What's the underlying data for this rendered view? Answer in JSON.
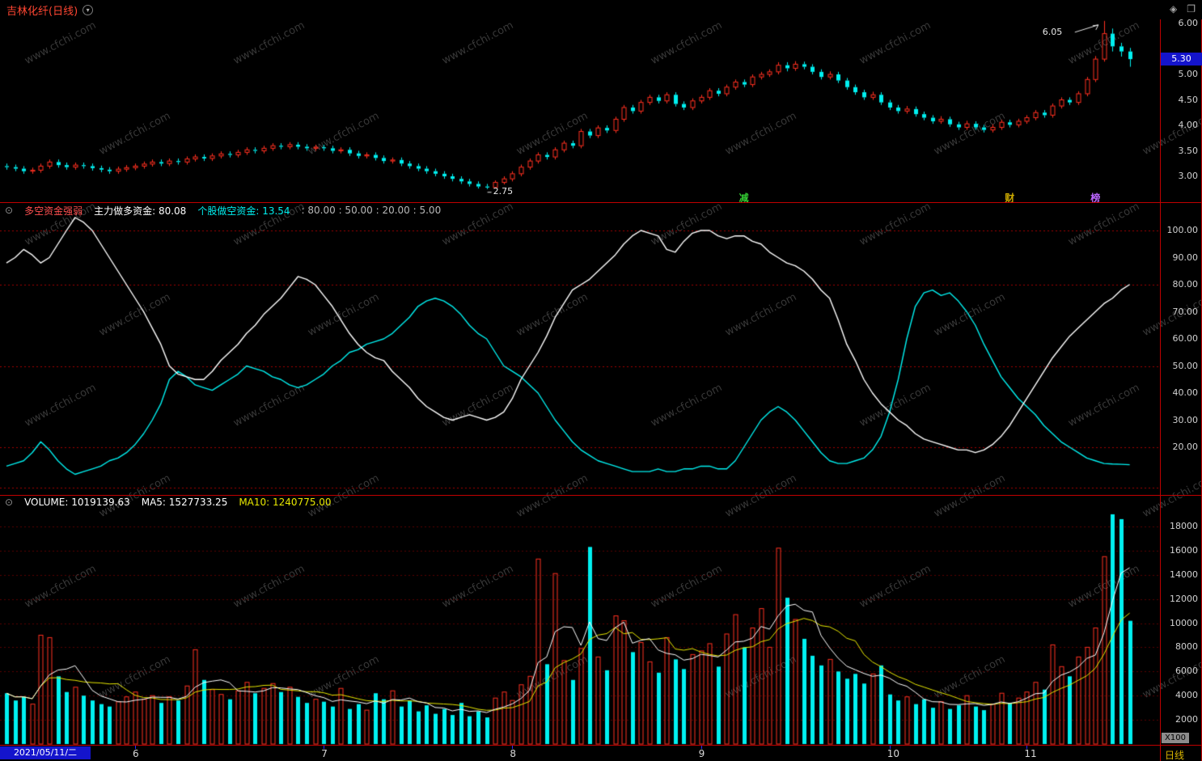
{
  "watermark": {
    "text": "www.cfchi.com"
  },
  "icons": {
    "collapse": "⊙",
    "caret": "▾",
    "diamond": "◈",
    "window": "❐"
  },
  "title_bar": {
    "title": "吉林化纤(日线)"
  },
  "main_panel": {
    "axis_labels": [
      "6.00",
      "5.00",
      "4.50",
      "4.00",
      "3.50",
      "3.00"
    ],
    "current_price": "5.30",
    "high_annotation": "6.05",
    "low_annotation": "2.75",
    "event_markers": [
      {
        "label": "减",
        "index": 86,
        "color": "#33cc33"
      },
      {
        "label": "财",
        "index": 117,
        "color": "#ccaa00"
      },
      {
        "label": "榜",
        "index": 127,
        "color": "#bb66ff"
      }
    ]
  },
  "indicator_panel": {
    "name": "多空资金强弱",
    "field1_label": "主力做多资金:",
    "field1_value": "80.08",
    "field2_label": "个股做空资金:",
    "field2_value": "13.54",
    "params": ": 80.00 : 50.00 : 20.00 : 5.00",
    "axis_labels": [
      "100.00",
      "90.00",
      "80.00",
      "70.00",
      "60.00",
      "50.00",
      "40.00",
      "30.00",
      "20.00"
    ]
  },
  "volume_panel": {
    "label": "VOLUME:",
    "value": "1019139.63",
    "ma5_label": "MA5:",
    "ma5_value": "1527733.25",
    "ma10_label": "MA10:",
    "ma10_value": "1240775.00",
    "axis_labels": [
      "18000",
      "16000",
      "14000",
      "12000",
      "10000",
      "8000",
      "6000",
      "4000",
      "2000"
    ],
    "unit_label": "X100"
  },
  "bottom_bar": {
    "date": "2021/05/11/二",
    "period": "日线"
  },
  "colors": {
    "up": "#ff3020",
    "down": "#00f0f0",
    "ma5": "#ffffff",
    "ma10": "#e8e800",
    "grid": "#a00000",
    "grid_soft": "#5a0000",
    "separator": "#c00000",
    "price_box_bg": "#1414cc",
    "watermark": "#aaaaaa",
    "title": "#ff4632"
  },
  "chart_data": {
    "type": "candlestick",
    "title": "吉林化纤 日线",
    "start_label": "2021/05/11",
    "price_range": [
      2.75,
      6.05
    ],
    "volume_range": [
      0,
      19000
    ],
    "candles": [
      [
        3.2,
        3.25,
        3.13,
        3.18
      ],
      [
        3.18,
        3.23,
        3.1,
        3.15
      ],
      [
        3.15,
        3.2,
        3.05,
        3.1
      ],
      [
        3.1,
        3.17,
        3.05,
        3.12
      ],
      [
        3.12,
        3.25,
        3.07,
        3.2
      ],
      [
        3.2,
        3.33,
        3.15,
        3.28
      ],
      [
        3.28,
        3.33,
        3.17,
        3.22
      ],
      [
        3.22,
        3.27,
        3.13,
        3.18
      ],
      [
        3.18,
        3.27,
        3.13,
        3.22
      ],
      [
        3.22,
        3.27,
        3.15,
        3.2
      ],
      [
        3.2,
        3.25,
        3.11,
        3.16
      ],
      [
        3.16,
        3.21,
        3.08,
        3.13
      ],
      [
        3.13,
        3.18,
        3.05,
        3.1
      ],
      [
        3.1,
        3.19,
        3.05,
        3.14
      ],
      [
        3.14,
        3.22,
        3.09,
        3.17
      ],
      [
        3.17,
        3.25,
        3.12,
        3.2
      ],
      [
        3.2,
        3.29,
        3.15,
        3.24
      ],
      [
        3.24,
        3.33,
        3.19,
        3.28
      ],
      [
        3.28,
        3.33,
        3.2,
        3.25
      ],
      [
        3.25,
        3.35,
        3.2,
        3.3
      ],
      [
        3.3,
        3.35,
        3.23,
        3.28
      ],
      [
        3.28,
        3.39,
        3.23,
        3.34
      ],
      [
        3.34,
        3.43,
        3.29,
        3.38
      ],
      [
        3.38,
        3.43,
        3.3,
        3.35
      ],
      [
        3.35,
        3.45,
        3.3,
        3.4
      ],
      [
        3.4,
        3.49,
        3.35,
        3.44
      ],
      [
        3.44,
        3.49,
        3.37,
        3.42
      ],
      [
        3.42,
        3.52,
        3.37,
        3.47
      ],
      [
        3.47,
        3.57,
        3.42,
        3.52
      ],
      [
        3.52,
        3.57,
        3.45,
        3.5
      ],
      [
        3.5,
        3.6,
        3.45,
        3.55
      ],
      [
        3.55,
        3.65,
        3.5,
        3.6
      ],
      [
        3.6,
        3.65,
        3.53,
        3.58
      ],
      [
        3.58,
        3.67,
        3.53,
        3.62
      ],
      [
        3.62,
        3.67,
        3.53,
        3.58
      ],
      [
        3.58,
        3.63,
        3.5,
        3.55
      ],
      [
        3.55,
        3.62,
        3.5,
        3.57
      ],
      [
        3.57,
        3.62,
        3.5,
        3.55
      ],
      [
        3.55,
        3.6,
        3.45,
        3.5
      ],
      [
        3.5,
        3.57,
        3.45,
        3.52
      ],
      [
        3.52,
        3.57,
        3.4,
        3.45
      ],
      [
        3.45,
        3.5,
        3.35,
        3.4
      ],
      [
        3.4,
        3.47,
        3.35,
        3.42
      ],
      [
        3.42,
        3.47,
        3.31,
        3.36
      ],
      [
        3.36,
        3.41,
        3.25,
        3.3
      ],
      [
        3.3,
        3.37,
        3.25,
        3.32
      ],
      [
        3.32,
        3.37,
        3.2,
        3.25
      ],
      [
        3.25,
        3.3,
        3.15,
        3.2
      ],
      [
        3.2,
        3.25,
        3.1,
        3.15
      ],
      [
        3.15,
        3.2,
        3.05,
        3.1
      ],
      [
        3.1,
        3.15,
        3.0,
        3.05
      ],
      [
        3.05,
        3.1,
        2.95,
        3.0
      ],
      [
        3.0,
        3.05,
        2.9,
        2.95
      ],
      [
        2.95,
        3.0,
        2.85,
        2.9
      ],
      [
        2.9,
        2.95,
        2.8,
        2.85
      ],
      [
        2.85,
        2.9,
        2.76,
        2.8
      ],
      [
        2.8,
        2.85,
        2.75,
        2.78
      ],
      [
        2.78,
        2.92,
        2.76,
        2.88
      ],
      [
        2.88,
        3.0,
        2.84,
        2.95
      ],
      [
        2.95,
        3.1,
        2.9,
        3.05
      ],
      [
        3.05,
        3.23,
        3.0,
        3.18
      ],
      [
        3.18,
        3.35,
        3.13,
        3.3
      ],
      [
        3.3,
        3.47,
        3.25,
        3.42
      ],
      [
        3.42,
        3.47,
        3.33,
        3.38
      ],
      [
        3.38,
        3.57,
        3.33,
        3.52
      ],
      [
        3.52,
        3.7,
        3.47,
        3.65
      ],
      [
        3.65,
        3.7,
        3.55,
        3.6
      ],
      [
        3.6,
        3.93,
        3.55,
        3.88
      ],
      [
        3.88,
        3.93,
        3.75,
        3.8
      ],
      [
        3.8,
        4.0,
        3.75,
        3.95
      ],
      [
        3.95,
        4.0,
        3.85,
        3.9
      ],
      [
        3.9,
        4.17,
        3.85,
        4.12
      ],
      [
        4.12,
        4.4,
        4.07,
        4.35
      ],
      [
        4.35,
        4.4,
        4.23,
        4.28
      ],
      [
        4.28,
        4.5,
        4.23,
        4.45
      ],
      [
        4.45,
        4.6,
        4.4,
        4.55
      ],
      [
        4.55,
        4.6,
        4.43,
        4.48
      ],
      [
        4.48,
        4.65,
        4.43,
        4.6
      ],
      [
        4.6,
        4.65,
        4.37,
        4.42
      ],
      [
        4.42,
        4.47,
        4.3,
        4.35
      ],
      [
        4.35,
        4.53,
        4.3,
        4.48
      ],
      [
        4.48,
        4.6,
        4.43,
        4.55
      ],
      [
        4.55,
        4.73,
        4.5,
        4.68
      ],
      [
        4.68,
        4.73,
        4.57,
        4.62
      ],
      [
        4.62,
        4.8,
        4.57,
        4.75
      ],
      [
        4.75,
        4.9,
        4.7,
        4.85
      ],
      [
        4.85,
        4.9,
        4.75,
        4.8
      ],
      [
        4.8,
        5.0,
        4.75,
        4.95
      ],
      [
        4.95,
        5.05,
        4.9,
        5.0
      ],
      [
        5.0,
        5.1,
        4.95,
        5.05
      ],
      [
        5.05,
        5.24,
        5.0,
        5.18
      ],
      [
        5.18,
        5.24,
        5.06,
        5.12
      ],
      [
        5.12,
        5.26,
        5.07,
        5.2
      ],
      [
        5.2,
        5.25,
        5.1,
        5.15
      ],
      [
        5.15,
        5.2,
        5.0,
        5.05
      ],
      [
        5.05,
        5.1,
        4.9,
        4.95
      ],
      [
        4.95,
        5.06,
        4.9,
        5.0
      ],
      [
        5.0,
        5.05,
        4.83,
        4.88
      ],
      [
        4.88,
        4.93,
        4.7,
        4.75
      ],
      [
        4.75,
        4.8,
        4.6,
        4.65
      ],
      [
        4.65,
        4.7,
        4.5,
        4.55
      ],
      [
        4.55,
        4.66,
        4.5,
        4.6
      ],
      [
        4.6,
        4.65,
        4.4,
        4.45
      ],
      [
        4.45,
        4.5,
        4.3,
        4.35
      ],
      [
        4.35,
        4.4,
        4.23,
        4.28
      ],
      [
        4.28,
        4.38,
        4.23,
        4.32
      ],
      [
        4.32,
        4.37,
        4.17,
        4.22
      ],
      [
        4.22,
        4.27,
        4.1,
        4.15
      ],
      [
        4.15,
        4.2,
        4.03,
        4.08
      ],
      [
        4.08,
        4.18,
        4.03,
        4.12
      ],
      [
        4.12,
        4.17,
        3.97,
        4.02
      ],
      [
        4.02,
        4.07,
        3.91,
        3.96
      ],
      [
        3.96,
        4.09,
        3.91,
        4.03
      ],
      [
        4.03,
        4.08,
        3.91,
        3.96
      ],
      [
        3.96,
        4.01,
        3.86,
        3.91
      ],
      [
        3.91,
        4.02,
        3.86,
        3.96
      ],
      [
        3.96,
        4.11,
        3.91,
        4.06
      ],
      [
        4.06,
        4.11,
        3.96,
        4.01
      ],
      [
        4.01,
        4.13,
        3.96,
        4.08
      ],
      [
        4.08,
        4.2,
        4.03,
        4.15
      ],
      [
        4.15,
        4.3,
        4.1,
        4.25
      ],
      [
        4.25,
        4.3,
        4.15,
        4.2
      ],
      [
        4.2,
        4.43,
        4.15,
        4.38
      ],
      [
        4.38,
        4.55,
        4.33,
        4.5
      ],
      [
        4.5,
        4.55,
        4.4,
        4.45
      ],
      [
        4.45,
        4.67,
        4.4,
        4.62
      ],
      [
        4.62,
        4.95,
        4.57,
        4.9
      ],
      [
        4.9,
        5.36,
        4.85,
        5.3
      ],
      [
        5.3,
        6.05,
        5.25,
        5.8
      ],
      [
        5.8,
        5.9,
        5.45,
        5.55
      ],
      [
        5.55,
        5.62,
        5.35,
        5.45
      ],
      [
        5.45,
        5.52,
        5.15,
        5.3
      ]
    ],
    "volume": [
      4200,
      3600,
      3900,
      3300,
      9000,
      8800,
      5600,
      4300,
      4700,
      4000,
      3600,
      3300,
      3100,
      3500,
      3900,
      4300,
      3700,
      4000,
      3400,
      3900,
      3600,
      4800,
      7800,
      5300,
      4500,
      4100,
      3700,
      4400,
      5100,
      4200,
      4600,
      5000,
      4300,
      4700,
      3900,
      3400,
      3700,
      3500,
      3100,
      4600,
      2900,
      3300,
      2800,
      4200,
      3700,
      4400,
      3100,
      3600,
      2700,
      3200,
      2500,
      2900,
      2400,
      3400,
      2300,
      2700,
      2200,
      3800,
      4300,
      3600,
      4900,
      5600,
      15300,
      6600,
      14100,
      6900,
      5300,
      7900,
      16300,
      7200,
      6100,
      10600,
      10200,
      7600,
      8400,
      6800,
      5900,
      8800,
      7000,
      6200,
      7400,
      7700,
      8300,
      6400,
      9100,
      10700,
      8000,
      9600,
      11200,
      8000,
      16200,
      12100,
      10300,
      8700,
      7300,
      6500,
      7000,
      6000,
      5400,
      5800,
      5000,
      5800,
      6500,
      4100,
      3600,
      3900,
      3300,
      3700,
      3000,
      3500,
      2900,
      3200,
      4000,
      3100,
      2800,
      3300,
      4200,
      3400,
      3800,
      4300,
      5100,
      4500,
      8200,
      6400,
      5600,
      7200,
      8000,
      9600,
      15500,
      19000,
      18600,
      10191
    ],
    "indicator": {
      "name": "多空资金强弱",
      "reference_lines": [
        100,
        80,
        50,
        20,
        5
      ],
      "range": [
        0,
        110
      ],
      "series": [
        {
          "name": "主力做多资金",
          "color": "#ffffff",
          "values": [
            88,
            90,
            93,
            91,
            88,
            90,
            95,
            100,
            105,
            103,
            100,
            95,
            90,
            85,
            80,
            75,
            70,
            64,
            58,
            50,
            47,
            46,
            45,
            45,
            48,
            52,
            55,
            58,
            62,
            65,
            69,
            72,
            75,
            79,
            83,
            82,
            80,
            76,
            72,
            67,
            62,
            58,
            55,
            53,
            52,
            48,
            45,
            42,
            38,
            35,
            33,
            31,
            30,
            31,
            32,
            31,
            30,
            31,
            33,
            38,
            45,
            50,
            55,
            61,
            68,
            73,
            78,
            80,
            82,
            85,
            88,
            91,
            95,
            98,
            100,
            99,
            98,
            93,
            92,
            96,
            99,
            100,
            100,
            98,
            97,
            98,
            98,
            96,
            95,
            92,
            90,
            88,
            87,
            85,
            82,
            78,
            75,
            67,
            58,
            52,
            45,
            40,
            36,
            33,
            30,
            28,
            25,
            23,
            22,
            21,
            20,
            19,
            19,
            18,
            19,
            21,
            24,
            28,
            33,
            38,
            43,
            48,
            53,
            57,
            61,
            64,
            67,
            70,
            73,
            75,
            78,
            80.08
          ]
        },
        {
          "name": "个股做空资金",
          "color": "#00f0f0",
          "values": [
            13,
            14,
            15,
            18,
            22,
            19,
            15,
            12,
            10,
            11,
            12,
            13,
            15,
            16,
            18,
            21,
            25,
            30,
            36,
            45,
            48,
            46,
            43,
            42,
            41,
            43,
            45,
            47,
            50,
            49,
            48,
            46,
            45,
            43,
            42,
            43,
            45,
            47,
            50,
            52,
            55,
            56,
            58,
            59,
            60,
            62,
            65,
            68,
            72,
            74,
            75,
            74,
            72,
            69,
            65,
            62,
            60,
            55,
            50,
            48,
            46,
            43,
            40,
            35,
            30,
            26,
            22,
            19,
            17,
            15,
            14,
            13,
            12,
            11,
            11,
            11,
            12,
            11,
            11,
            12,
            12,
            13,
            13,
            12,
            12,
            15,
            20,
            25,
            30,
            33,
            35,
            33,
            30,
            26,
            22,
            18,
            15,
            14,
            14,
            15,
            16,
            19,
            24,
            33,
            45,
            60,
            72,
            77,
            78,
            76,
            77,
            74,
            70,
            65,
            58,
            52,
            46,
            42,
            38,
            35,
            32,
            28,
            25,
            22,
            20,
            18,
            16,
            15,
            14,
            13.8,
            13.7,
            13.54
          ]
        }
      ]
    },
    "months": [
      {
        "label": "6",
        "index": 15
      },
      {
        "label": "7",
        "index": 37
      },
      {
        "label": "8",
        "index": 59
      },
      {
        "label": "9",
        "index": 81
      },
      {
        "label": "10",
        "index": 103
      },
      {
        "label": "11",
        "index": 119
      }
    ]
  }
}
